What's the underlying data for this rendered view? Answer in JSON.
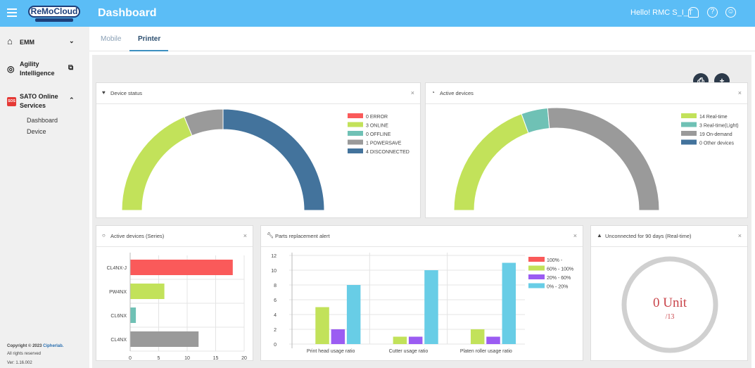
{
  "header": {
    "logo": "ReMoCloud",
    "title": "Dashboard",
    "greeting": "Hello! RMC S_I_T",
    "icons": [
      "menu-icon",
      "bell-icon",
      "help-icon",
      "account-icon"
    ]
  },
  "sidebar": {
    "items": [
      {
        "label": "EMM",
        "icon": "home-icon"
      },
      {
        "label": "Agility Intelligence",
        "icon": "agility-icon"
      },
      {
        "label": "SATO Online Services",
        "icon": "sos-icon",
        "children": [
          "Dashboard",
          "Device"
        ]
      }
    ],
    "copyright": "Copyright © 2023",
    "company": "Cipherlab.",
    "rights": "All rights reserved",
    "version": "Ver: 1.16.002"
  },
  "tabs": [
    {
      "label": "Mobile",
      "active": false
    },
    {
      "label": "Printer",
      "active": true
    }
  ],
  "colors": {
    "accent": "#5bbdf6",
    "error": "#fa5a5a",
    "online": "#c2e25a",
    "offline": "#6fc1b5",
    "powersave": "#9a9a9a",
    "disconnected": "#43739c",
    "purple": "#9b5cf2",
    "cyan": "#68cde6"
  },
  "cards": {
    "device_status": "Device status",
    "active_devices": "Active devices",
    "series": "Active devices (Series)",
    "parts": "Parts replacement alert",
    "unconnected": "Unconnected for 90 days (Real-time)"
  },
  "unconnected": {
    "value": "0 Unit",
    "total": "/13"
  },
  "chart_data": [
    {
      "type": "pie",
      "title": "Device status",
      "shape": "semi-donut",
      "legend": "right",
      "slices": [
        {
          "label": "0 ERROR",
          "value": 0,
          "color": "#fa5a5a"
        },
        {
          "label": "3 ONLINE",
          "value": 3,
          "color": "#c2e25a"
        },
        {
          "label": "0 OFFLINE",
          "value": 0,
          "color": "#6fc1b5"
        },
        {
          "label": "1 POWERSAVE",
          "value": 1,
          "color": "#9a9a9a"
        },
        {
          "label": "4 DISCONNECTED",
          "value": 4,
          "color": "#43739c"
        }
      ]
    },
    {
      "type": "pie",
      "title": "Active devices",
      "shape": "semi-donut",
      "legend": "right",
      "slices": [
        {
          "label": "14 Real-time",
          "value": 14,
          "color": "#c2e25a"
        },
        {
          "label": "3 Real-time(Light)",
          "value": 3,
          "color": "#6fc1b5"
        },
        {
          "label": "19 On-demand",
          "value": 19,
          "color": "#9a9a9a"
        },
        {
          "label": "0 Other devices",
          "value": 0,
          "color": "#43739c"
        }
      ]
    },
    {
      "type": "bar",
      "orientation": "horizontal",
      "title": "Active devices (Series)",
      "categories": [
        "CL4NX-J",
        "PW4NX",
        "CL6NX",
        "CL4NX"
      ],
      "values": [
        18,
        6,
        1,
        12
      ],
      "colors": [
        "#fa5a5a",
        "#c2e25a",
        "#6fc1b5",
        "#9a9a9a"
      ],
      "xlim": [
        0,
        20
      ],
      "xticks": [
        0,
        5,
        10,
        15,
        20
      ],
      "grid": true
    },
    {
      "type": "bar",
      "title": "Parts replacement alert",
      "categories": [
        "Print head usage ratio",
        "Cutter usage ratio",
        "Platen roller usage ratio"
      ],
      "ylim": [
        0,
        12
      ],
      "yticks": [
        0,
        2,
        4,
        6,
        8,
        10,
        12
      ],
      "grid": true,
      "legend": "right",
      "series": [
        {
          "name": "100% -",
          "values": [
            0,
            0,
            0
          ],
          "color": "#fa5a5a"
        },
        {
          "name": "60% - 100%",
          "values": [
            5,
            1,
            2
          ],
          "color": "#c2e25a"
        },
        {
          "name": "20% - 60%",
          "values": [
            2,
            1,
            1
          ],
          "color": "#9b5cf2"
        },
        {
          "name": "0% - 20%",
          "values": [
            8,
            10,
            11
          ],
          "color": "#68cde6"
        }
      ]
    }
  ]
}
